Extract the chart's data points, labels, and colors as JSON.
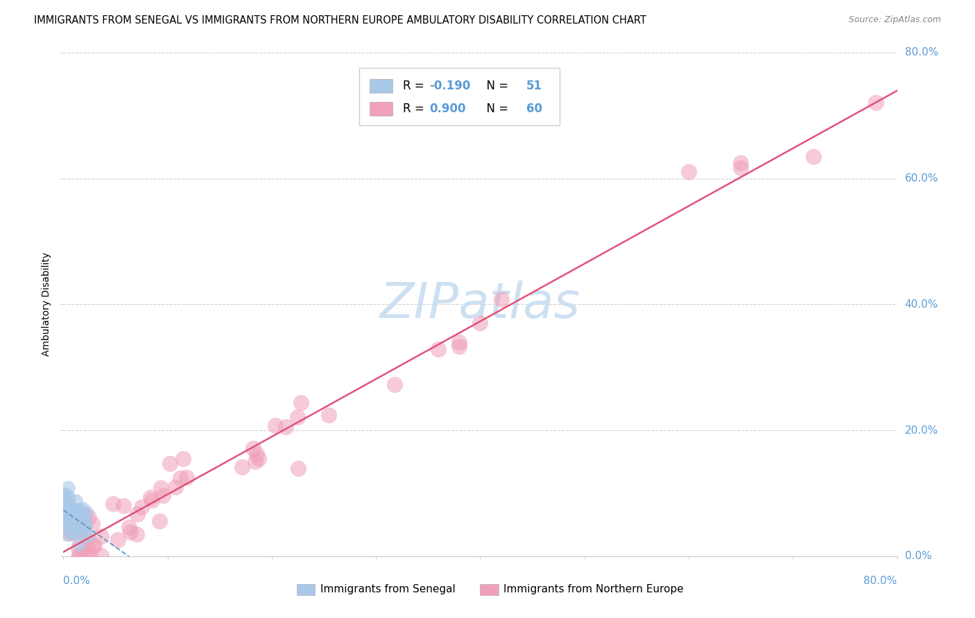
{
  "title": "IMMIGRANTS FROM SENEGAL VS IMMIGRANTS FROM NORTHERN EUROPE AMBULATORY DISABILITY CORRELATION CHART",
  "source": "Source: ZipAtlas.com",
  "ylabel": "Ambulatory Disability",
  "ylabel_ticks": [
    "0.0%",
    "20.0%",
    "40.0%",
    "60.0%",
    "80.0%"
  ],
  "legend1_label": "Immigrants from Senegal",
  "legend2_label": "Immigrants from Northern Europe",
  "R_senegal": -0.19,
  "N_senegal": 51,
  "R_northern": 0.9,
  "N_northern": 60,
  "senegal_color": "#a8c8e8",
  "northern_color": "#f0a0b8",
  "senegal_line_color": "#6699cc",
  "northern_line_color": "#e0507a",
  "background_color": "#ffffff",
  "grid_color": "#c8c8c8",
  "axis_color": "#5b9bd5",
  "watermark_color": "#c8ddf0",
  "title_fontsize": 10.5,
  "source_fontsize": 9
}
